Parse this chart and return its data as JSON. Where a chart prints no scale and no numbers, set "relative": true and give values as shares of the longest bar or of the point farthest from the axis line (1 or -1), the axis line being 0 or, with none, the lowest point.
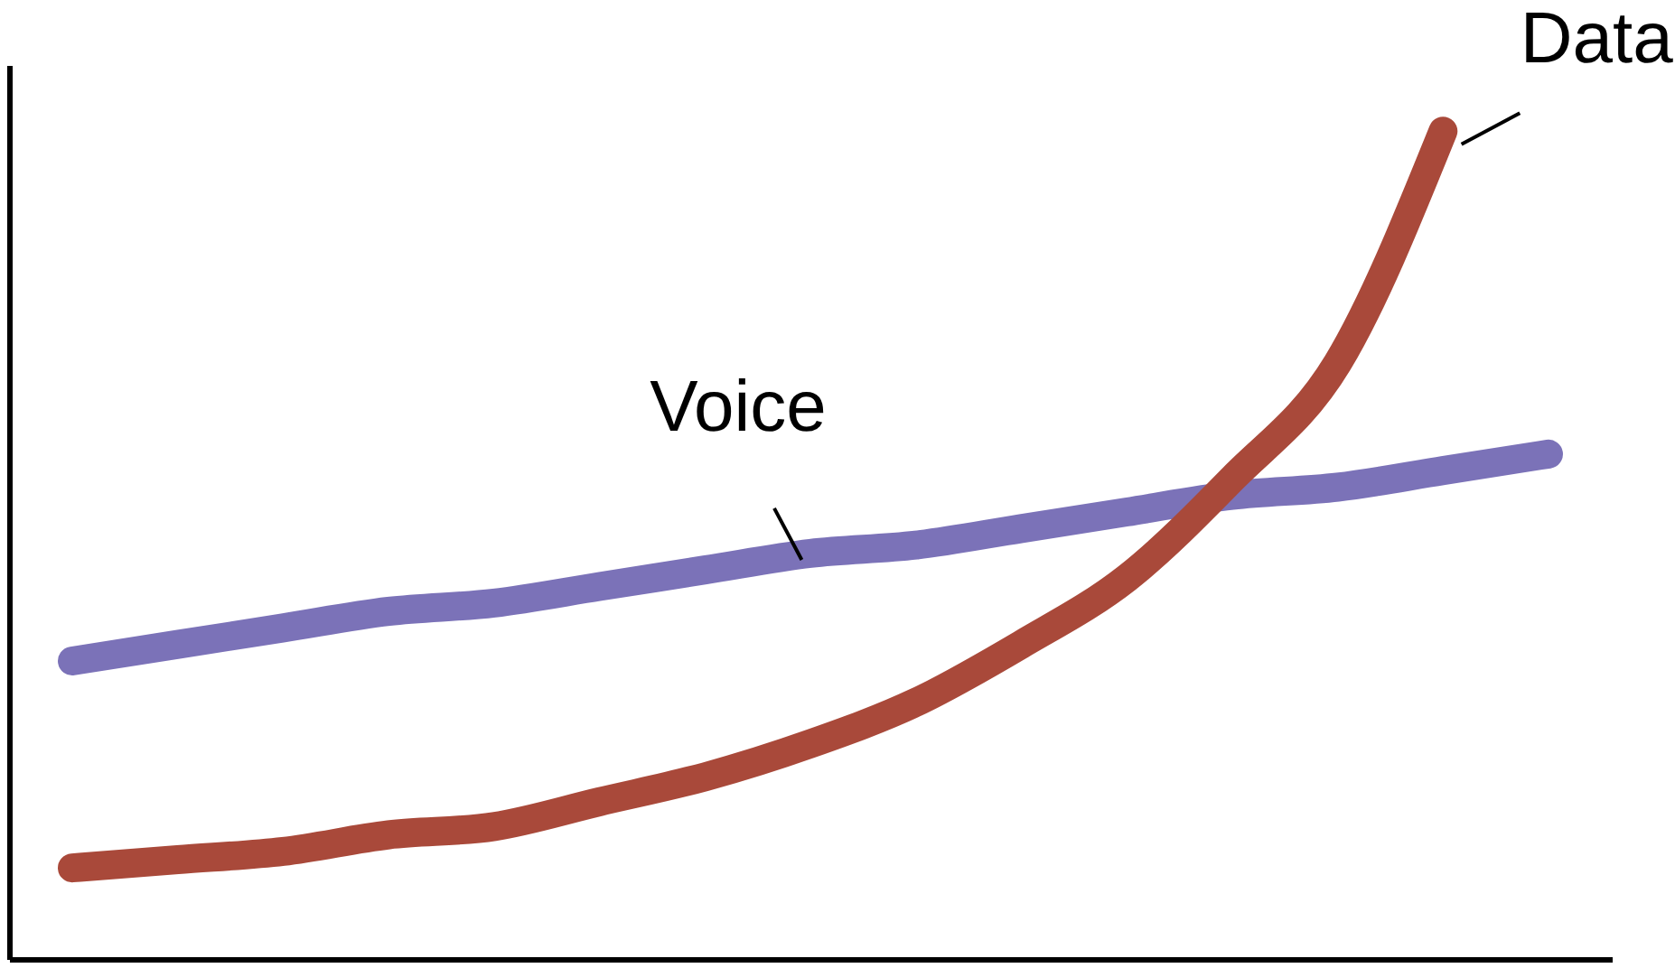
{
  "chart_data": {
    "type": "line",
    "relative": true,
    "categories": [
      null,
      null,
      null,
      null,
      null,
      null,
      null,
      null,
      null,
      null,
      null,
      null,
      null,
      null,
      null
    ],
    "series": [
      {
        "name": "Voice",
        "color": "#7b72b8",
        "values": [
          0.36,
          0.38,
          0.4,
          0.42,
          0.43,
          0.45,
          0.47,
          0.49,
          0.5,
          0.52,
          0.54,
          0.56,
          0.57,
          0.59,
          0.61
        ]
      },
      {
        "name": "Data",
        "color": "#a9493a",
        "values": [
          0.11,
          0.12,
          0.13,
          0.15,
          0.16,
          0.19,
          0.22,
          0.26,
          0.31,
          0.38,
          0.46,
          0.58,
          0.72,
          1.0,
          null
        ]
      }
    ],
    "line_style": "solid"
  }
}
